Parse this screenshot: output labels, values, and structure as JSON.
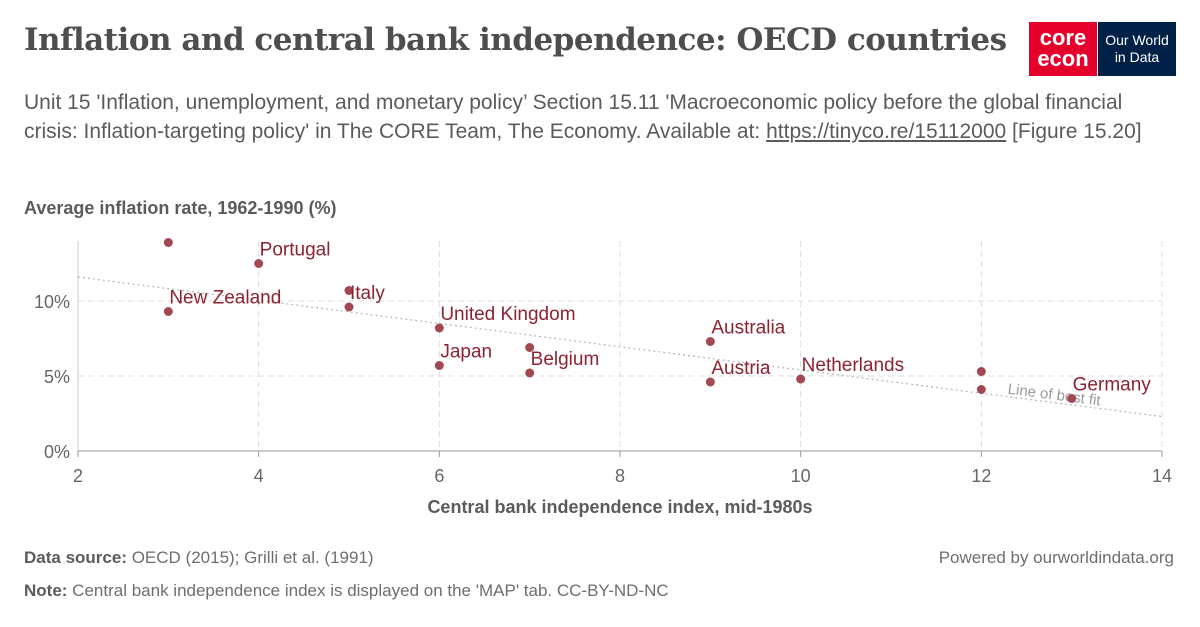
{
  "header": {
    "title": "Inflation and central bank independence: OECD countries",
    "subtitle_text": "Unit 15 'Inflation, unemployment, and monetary policy’ Section 15.11 'Macroeconomic policy before the global financial crisis: Inflation-targeting policy' in The CORE Team, The Economy. Available at: ",
    "subtitle_link": "https://tinyco.re/15112000",
    "subtitle_tail": " [Figure 15.20]"
  },
  "logos": {
    "core_line1": "core",
    "core_line2": "econ",
    "owid_line1": "Our World",
    "owid_line2": "in Data"
  },
  "footer": {
    "source_label": "Data source:",
    "source_text": " OECD (2015); Grilli et al. (1991)",
    "note_label": "Note:",
    "note_text": " Central bank independence index is displayed on the 'MAP' tab. CC-BY-ND-NC",
    "powered": "Powered by ourworldindata.org"
  },
  "chart_data": {
    "type": "scatter",
    "ylabel": "Average inflation rate, 1962-1990 (%)",
    "xlabel": "Central bank independence index, mid-1980s",
    "xlim": [
      2,
      14
    ],
    "ylim": [
      0,
      14
    ],
    "x_ticks": [
      2,
      4,
      6,
      8,
      10,
      12,
      14
    ],
    "y_ticks": [
      0,
      5,
      10
    ],
    "y_tick_labels": [
      "0%",
      "5%",
      "10%"
    ],
    "grid": true,
    "point_color": "#a14952",
    "label_color": "#8c2232",
    "points": [
      {
        "x": 3,
        "y": 13.9,
        "label": ""
      },
      {
        "x": 3,
        "y": 9.3,
        "label": "New Zealand"
      },
      {
        "x": 4,
        "y": 12.5,
        "label": "Portugal"
      },
      {
        "x": 5,
        "y": 10.7,
        "label": ""
      },
      {
        "x": 5,
        "y": 9.6,
        "label": "Italy"
      },
      {
        "x": 6,
        "y": 8.2,
        "label": "United Kingdom"
      },
      {
        "x": 6,
        "y": 5.7,
        "label": "Japan"
      },
      {
        "x": 7,
        "y": 6.9,
        "label": ""
      },
      {
        "x": 7,
        "y": 5.2,
        "label": "Belgium"
      },
      {
        "x": 9,
        "y": 7.3,
        "label": "Australia"
      },
      {
        "x": 9,
        "y": 4.6,
        "label": "Austria"
      },
      {
        "x": 10,
        "y": 4.8,
        "label": "Netherlands"
      },
      {
        "x": 12,
        "y": 5.3,
        "label": ""
      },
      {
        "x": 12,
        "y": 4.1,
        "label": ""
      },
      {
        "x": 13,
        "y": 3.5,
        "label": "Germany"
      }
    ],
    "best_fit": {
      "label": "Line of best fit",
      "x0": 2,
      "y0": 11.6,
      "x1": 14,
      "y1": 2.3
    }
  }
}
